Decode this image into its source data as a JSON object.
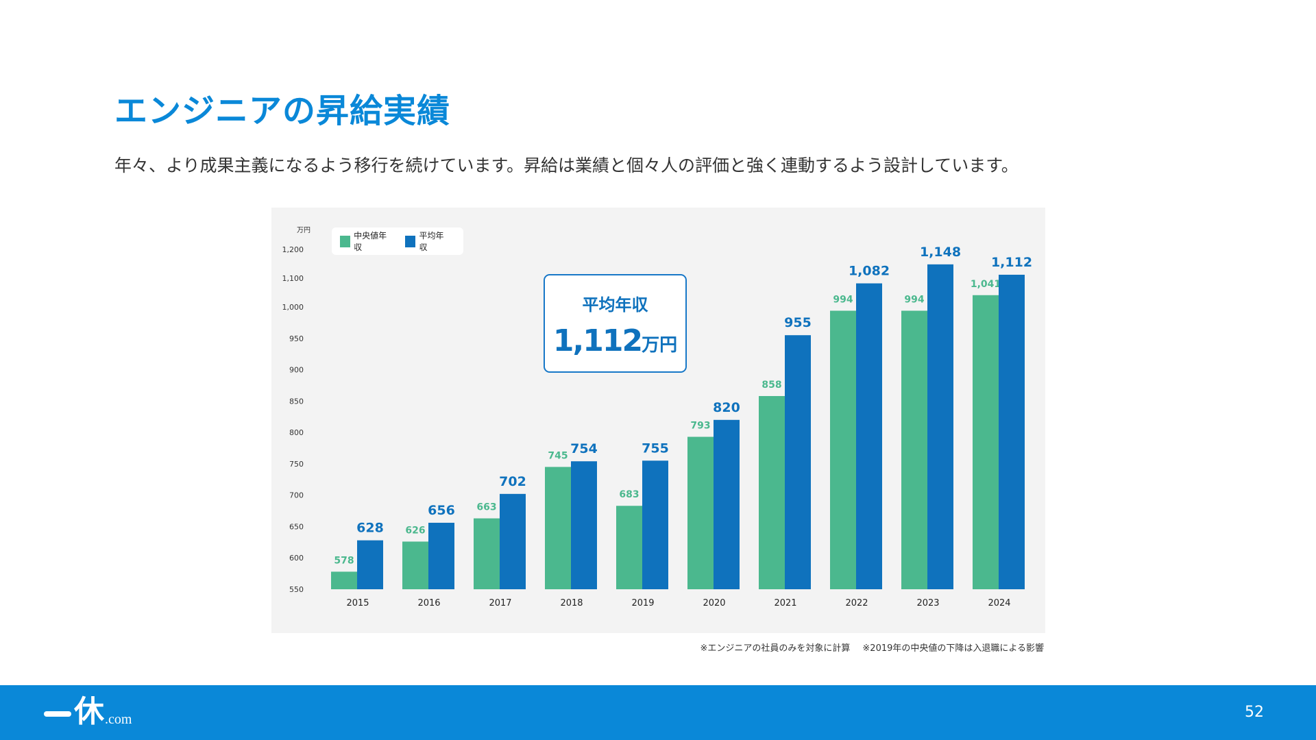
{
  "slide": {
    "title": "エンジニアの昇給実績",
    "subtitle": "年々、より成果主義になるよう移行を続けています。昇給は業績と個々人の評価と強く連動するよう設計しています。",
    "footnote1": "※エンジニアの社員のみを対象に計算",
    "footnote2": "※2019年の中央値の下降は入退職による影響",
    "page_number": "52"
  },
  "footer": {
    "logo_kanji": "休",
    "logo_suffix": ".com"
  },
  "callout": {
    "label": "平均年収",
    "value": "1,112",
    "unit": "万円"
  },
  "colors": {
    "median": "#4bb88e",
    "average": "#0f72bd",
    "title": "#0a88d8",
    "footer": "#0a88d8"
  },
  "chart_data": {
    "type": "bar",
    "unit_label": "万円",
    "categories": [
      "2015",
      "2016",
      "2017",
      "2018",
      "2019",
      "2020",
      "2021",
      "2022",
      "2023",
      "2024"
    ],
    "series": [
      {
        "name": "中央値年収",
        "values": [
          578,
          626,
          663,
          745,
          683,
          793,
          858,
          994,
          994,
          1041
        ],
        "labels": [
          "578",
          "626",
          "663",
          "745",
          "683",
          "793",
          "858",
          "994",
          "994",
          "1,041"
        ]
      },
      {
        "name": "平均年収",
        "values": [
          628,
          656,
          702,
          754,
          755,
          820,
          955,
          1082,
          1148,
          1112
        ],
        "labels": [
          "628",
          "656",
          "702",
          "754",
          "755",
          "820",
          "955",
          "1,082",
          "1,148",
          "1,112"
        ]
      }
    ],
    "yticks": [
      {
        "value": 550,
        "label": "550"
      },
      {
        "value": 600,
        "label": "600"
      },
      {
        "value": 650,
        "label": "650"
      },
      {
        "value": 700,
        "label": "700"
      },
      {
        "value": 750,
        "label": "750"
      },
      {
        "value": 800,
        "label": "800"
      },
      {
        "value": 850,
        "label": "850"
      },
      {
        "value": 900,
        "label": "900"
      },
      {
        "value": 950,
        "label": "950"
      },
      {
        "value": 1000,
        "label": "1,000"
      },
      {
        "value": 1100,
        "label": "1,100"
      },
      {
        "value": 1200,
        "label": "1,200"
      }
    ],
    "ylim": [
      550,
      1200
    ],
    "axis_break": "non-linear scale above 1,000",
    "grid": false,
    "legend_position": "top-left"
  }
}
